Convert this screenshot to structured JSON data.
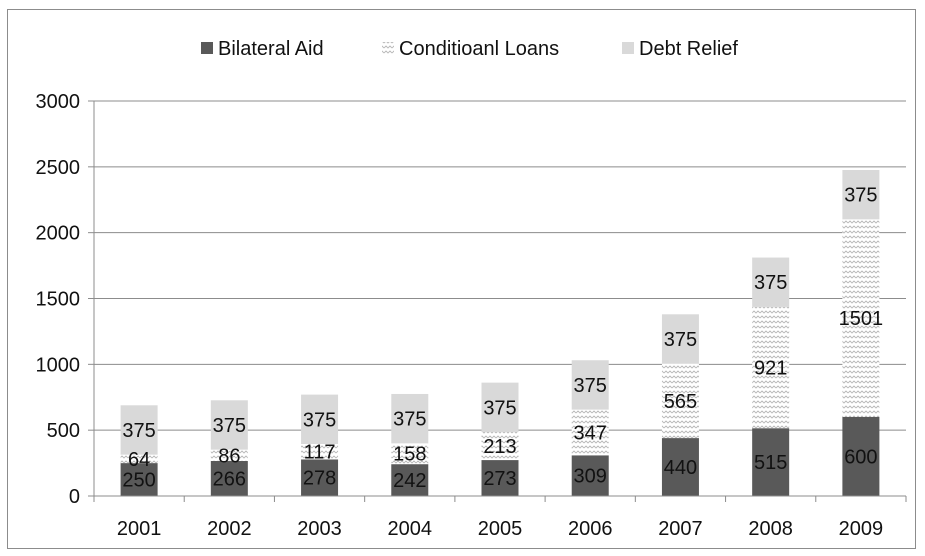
{
  "chart_data": {
    "type": "bar",
    "stacked": true,
    "categories": [
      "2001",
      "2002",
      "2003",
      "2004",
      "2005",
      "2006",
      "2007",
      "2008",
      "2009"
    ],
    "series": [
      {
        "name": "Bilateral Aid",
        "values": [
          250,
          266,
          278,
          242,
          273,
          309,
          440,
          515,
          600
        ],
        "color": "#595959",
        "pattern": "solid"
      },
      {
        "name": "Conditioanl Loans",
        "values": [
          64,
          86,
          117,
          158,
          213,
          347,
          565,
          921,
          1501
        ],
        "color": "#bfbfbf",
        "pattern": "zigzag"
      },
      {
        "name": "Debt Relief",
        "values": [
          375,
          375,
          375,
          375,
          375,
          375,
          375,
          375,
          375
        ],
        "color": "#d9d9d9",
        "pattern": "solid"
      }
    ],
    "ylim": [
      0,
      3000
    ],
    "yticks": [
      "0",
      "500",
      "1000",
      "1500",
      "2000",
      "2500",
      "3000"
    ],
    "grid": true,
    "legend_position": "top",
    "data_labels": true
  }
}
